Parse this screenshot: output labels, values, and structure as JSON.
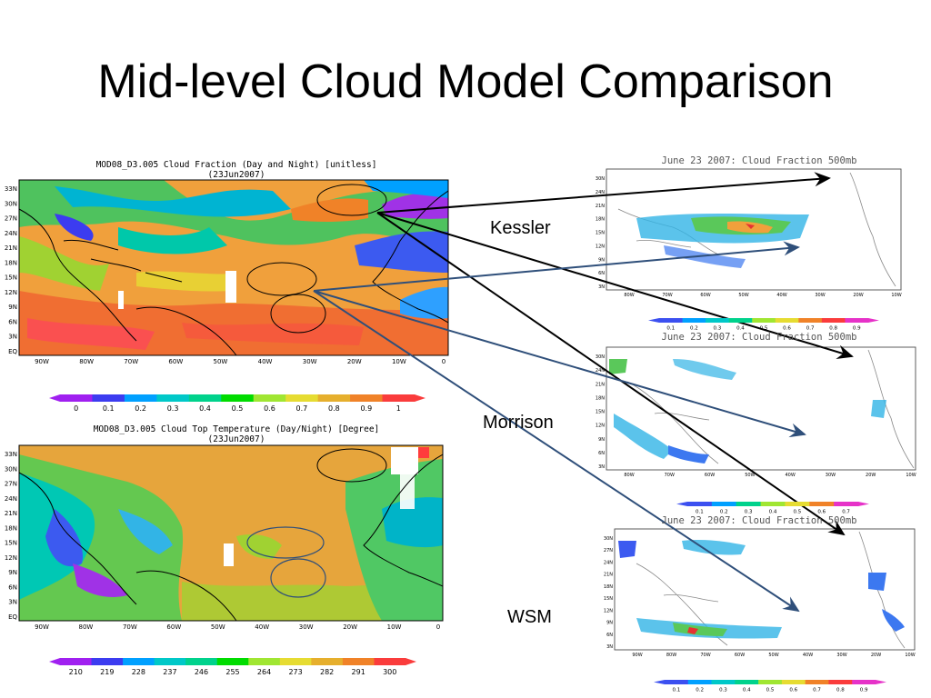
{
  "slide": {
    "title": "Mid-level Cloud Model Comparison"
  },
  "labels": {
    "kessler": "Kessler",
    "morrison": "Morrison",
    "wsm": "WSM"
  },
  "modis_fraction": {
    "title_line1": "MOD08_D3.005 Cloud Fraction (Day and Night) [unitless]",
    "title_line2": "(23Jun2007)",
    "lat_ticks": [
      "33N",
      "30N",
      "27N",
      "24N",
      "21N",
      "18N",
      "15N",
      "12N",
      "9N",
      "6N",
      "3N",
      "EQ"
    ],
    "lon_ticks": [
      "90W",
      "80W",
      "70W",
      "60W",
      "50W",
      "40W",
      "30W",
      "20W",
      "10W",
      "0"
    ],
    "colorbar_ticks": [
      "0",
      "0.1",
      "0.2",
      "0.3",
      "0.4",
      "0.5",
      "0.6",
      "0.7",
      "0.8",
      "0.9",
      "1"
    ],
    "colors": [
      "#a020f0",
      "#3c3cf0",
      "#00a0ff",
      "#00c8c8",
      "#00d28c",
      "#00dc00",
      "#a0e632",
      "#e6dc32",
      "#e6af2d",
      "#f08228",
      "#fa3c3c"
    ]
  },
  "modis_temperature": {
    "title_line1": "MOD08_D3.005 Cloud Top Temperature (Day/Night) [Degree]",
    "title_line2": "(23Jun2007)",
    "lat_ticks": [
      "33N",
      "30N",
      "27N",
      "24N",
      "21N",
      "18N",
      "15N",
      "12N",
      "9N",
      "6N",
      "3N",
      "EQ"
    ],
    "lon_ticks": [
      "90W",
      "80W",
      "70W",
      "60W",
      "50W",
      "40W",
      "30W",
      "20W",
      "10W",
      "0"
    ],
    "colorbar_ticks": [
      "210",
      "219",
      "228",
      "237",
      "246",
      "255",
      "264",
      "273",
      "282",
      "291",
      "300"
    ]
  },
  "model_kessler": {
    "title": "June 23 2007: Cloud Fraction 500mb",
    "lat_ticks": [
      "30N",
      "24N",
      "21N",
      "18N",
      "15N",
      "12N",
      "9N",
      "6N",
      "3N"
    ],
    "lon_ticks": [
      "80W",
      "70W",
      "60W",
      "50W",
      "40W",
      "30W",
      "20W",
      "10W"
    ],
    "colorbar_ticks": [
      "0.1",
      "0.2",
      "0.3",
      "0.4",
      "0.5",
      "0.6",
      "0.7",
      "0.8",
      "0.9"
    ]
  },
  "model_morrison": {
    "title": "June 23 2007: Cloud Fraction 500mb",
    "lat_ticks": [
      "30N",
      "24N",
      "21N",
      "18N",
      "15N",
      "12N",
      "9N",
      "6N",
      "3N"
    ],
    "lon_ticks": [
      "80W",
      "70W",
      "60W",
      "50W",
      "40W",
      "30W",
      "20W",
      "10W"
    ],
    "colorbar_ticks": [
      "0.1",
      "0.2",
      "0.3",
      "0.4",
      "0.5",
      "0.6",
      "0.7"
    ]
  },
  "model_wsm": {
    "title": "June 23 2007: Cloud Fraction 500mb",
    "lat_ticks": [
      "30N",
      "27N",
      "24N",
      "21N",
      "18N",
      "15N",
      "12N",
      "9N",
      "6N",
      "3N"
    ],
    "lon_ticks": [
      "90W",
      "80W",
      "70W",
      "60W",
      "50W",
      "40W",
      "30W",
      "20W",
      "10W"
    ],
    "colorbar_ticks": [
      "0.1",
      "0.2",
      "0.3",
      "0.4",
      "0.5",
      "0.6",
      "0.7",
      "0.8",
      "0.9"
    ]
  }
}
